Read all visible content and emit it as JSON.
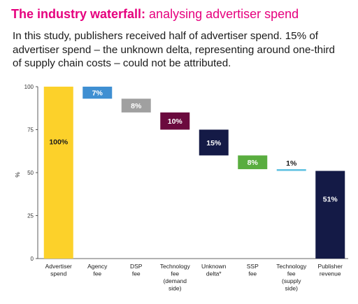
{
  "header": {
    "title_bold": "The industry waterfall:",
    "title_rest": " analysing advertiser spend",
    "subtitle": "In this study, publishers received half of advertiser spend. 15% of advertiser spend – the unknown delta, representing around one-third of supply chain costs – could not be attributed."
  },
  "colors": {
    "title": "#e6007e",
    "advertiser_spend": "#fcd12a",
    "agency_fee": "#3f8fd2",
    "dsp_fee": "#a0a0a0",
    "technology_fee_demand": "#6b0a3e",
    "unknown_delta": "#141a46",
    "ssp_fee": "#59ad3f",
    "technology_fee_supply": "#5bc0e0",
    "publisher_revenue": "#141a46"
  },
  "chart_data": {
    "type": "bar",
    "subtype": "waterfall",
    "ylabel": "%",
    "ylim": [
      0,
      100
    ],
    "yticks": [
      "0",
      "25",
      "50",
      "75",
      "100"
    ],
    "grid": false,
    "bars": [
      {
        "category": [
          "Advertiser",
          "spend"
        ],
        "base": 0,
        "value": 100,
        "label": "100%",
        "color_key": "advertiser_spend",
        "label_color": "#1a1a1a",
        "label_pos": "inside"
      },
      {
        "category": [
          "Agency",
          "fee"
        ],
        "base": 93,
        "value": 7,
        "label": "7%",
        "color_key": "agency_fee",
        "label_color": "#ffffff",
        "label_pos": "inside"
      },
      {
        "category": [
          "DSP",
          "fee"
        ],
        "base": 85,
        "value": 8,
        "label": "8%",
        "color_key": "dsp_fee",
        "label_color": "#ffffff",
        "label_pos": "inside"
      },
      {
        "category": [
          "Technology",
          "fee",
          "(demand",
          "side)"
        ],
        "base": 75,
        "value": 10,
        "label": "10%",
        "color_key": "technology_fee_demand",
        "label_color": "#ffffff",
        "label_pos": "inside"
      },
      {
        "category": [
          "Unknown",
          "delta*"
        ],
        "base": 60,
        "value": 15,
        "label": "15%",
        "color_key": "unknown_delta",
        "label_color": "#ffffff",
        "label_pos": "inside"
      },
      {
        "category": [
          "SSP",
          "fee"
        ],
        "base": 52,
        "value": 8,
        "label": "8%",
        "color_key": "ssp_fee",
        "label_color": "#ffffff",
        "label_pos": "inside"
      },
      {
        "category": [
          "Technology",
          "fee",
          "(supply",
          "side)"
        ],
        "base": 51,
        "value": 1,
        "label": "1%",
        "color_key": "technology_fee_supply",
        "label_color": "#1a1a1a",
        "label_pos": "above"
      },
      {
        "category": [
          "Publisher",
          "revenue"
        ],
        "base": 0,
        "value": 51,
        "label": "51%",
        "color_key": "publisher_revenue",
        "label_color": "#ffffff",
        "label_pos": "inside"
      }
    ]
  }
}
